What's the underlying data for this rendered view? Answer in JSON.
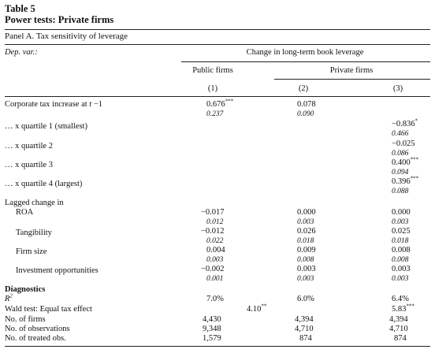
{
  "table": {
    "number": "Table 5",
    "title": "Power tests: Private firms",
    "panel": "Panel A. Tax sensitivity of leverage"
  },
  "header": {
    "dep_var": "Dep. var.:",
    "dep_var_desc": "Change in long-term book leverage",
    "public_firms": "Public firms",
    "private_firms": "Private firms",
    "col1": "(1)",
    "col2": "(2)",
    "col3": "(3)"
  },
  "rows": {
    "tax": {
      "label_pre": "Corporate tax increase at ",
      "label_t": "t",
      "label_post": " −1",
      "c1": "0.676",
      "c1_star": "***",
      "c1_se": "0.237",
      "c2": "0.078",
      "c2_se": "0.090"
    },
    "q1": {
      "label": "… x quartile 1 (smallest)",
      "c3": "−0.836",
      "c3_star": "*",
      "c3_se": "0.466"
    },
    "q2": {
      "label": "… x quartile 2",
      "c3": "−0.025",
      "c3_se": "0.086"
    },
    "q3": {
      "label": "… x quartile 3",
      "c3": "0.400",
      "c3_star": "***",
      "c3_se": "0.094"
    },
    "q4": {
      "label": "… x quartile 4 (largest)",
      "c3": "0.396",
      "c3_star": "***",
      "c3_se": "0.088"
    },
    "lagged": {
      "label": "Lagged change in"
    },
    "roa": {
      "label": "ROA",
      "c1": "−0.017",
      "c1_se": "0.012",
      "c2": "0.000",
      "c2_se": "0.003",
      "c3": "0.000",
      "c3_se": "0.003"
    },
    "tang": {
      "label": "Tangibility",
      "c1": "−0.012",
      "c1_se": "0.022",
      "c2": "0.026",
      "c2_se": "0.018",
      "c3": "0.025",
      "c3_se": "0.018"
    },
    "size": {
      "label": "Firm size",
      "c1": "0.004",
      "c1_se": "0.003",
      "c2": "0.009",
      "c2_se": "0.008",
      "c3": "0.008",
      "c3_se": "0.008"
    },
    "invest": {
      "label": "Investment opportunities",
      "c1": "−0.002",
      "c1_se": "0.001",
      "c2": "0.003",
      "c2_se": "0.003",
      "c3": "0.003",
      "c3_se": "0.003"
    },
    "diag": {
      "label": "Diagnostics"
    },
    "r2": {
      "label_base": "R",
      "label_sup": "2",
      "c1": "7.0%",
      "c2": "6.0%",
      "c3": "6.4%"
    },
    "wald": {
      "label": "Wald test: Equal tax effect",
      "mid": "4.10",
      "mid_star": "**",
      "c3": "5.83",
      "c3_star": "***"
    },
    "nfirms": {
      "label": "No. of firms",
      "c1": "4,430",
      "c2": "4,394",
      "c3": "4,394"
    },
    "nobs": {
      "label": "No. of observations",
      "c1": "9,348",
      "c2": "4,710",
      "c3": "4,710"
    },
    "ntreat": {
      "label": "No. of treated obs.",
      "c1": "1,579",
      "c2": "874",
      "c3": "874"
    }
  }
}
